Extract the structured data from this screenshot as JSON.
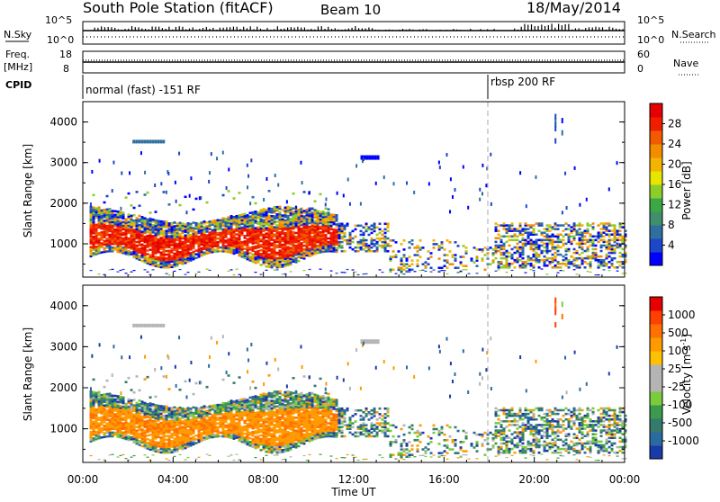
{
  "header": {
    "title": "South Pole Station (fitACF)",
    "beam": "Beam 10",
    "date": "18/May/2014"
  },
  "nsky_panel": {
    "left_label": "N.Sky",
    "right_label": "N.Search",
    "ticks": [
      "10^5",
      "10^0"
    ]
  },
  "freq_panel": {
    "left_label_1": "Freq.",
    "left_label_2": "[MHz]",
    "left_ticks": [
      "18",
      "8"
    ],
    "right_label": "Nave",
    "right_ticks": [
      "60",
      "0"
    ]
  },
  "cpid_panel": {
    "label": "CPID",
    "mode_1": "normal (fast) -151 RF",
    "mode_2": "rbsp 200 RF"
  },
  "chart_data": [
    {
      "type": "heatmap",
      "name": "power",
      "ylabel": "Slant Range [km]",
      "yticks": [
        "1000",
        "2000",
        "3000",
        "4000"
      ],
      "yrange": [
        180,
        4500
      ],
      "xrange_hours": [
        0,
        24
      ],
      "colorbar": {
        "label": "Power [dB]",
        "ticks": [
          "4",
          "8",
          "12",
          "16",
          "20",
          "24",
          "28"
        ],
        "colors": [
          "#0000ff",
          "#1e46c8",
          "#2f6fa0",
          "#3f8f6a",
          "#3aa846",
          "#8ccd2a",
          "#e6e600",
          "#f2b400",
          "#f28c00",
          "#f25a00",
          "#f01e00",
          "#e60000"
        ]
      }
    },
    {
      "type": "heatmap",
      "name": "velocity",
      "ylabel": "Slant Range [km]",
      "yticks": [
        "1000",
        "2000",
        "3000",
        "4000"
      ],
      "yrange": [
        180,
        4500
      ],
      "xrange_hours": [
        0,
        24
      ],
      "xticks": [
        "00:00",
        "04:00",
        "08:00",
        "12:00",
        "16:00",
        "20:00",
        "00:00"
      ],
      "xlabel": "Time UT",
      "colorbar": {
        "label": "Velocity [m s",
        "label_sup": "-1",
        "label_end": "]",
        "ticks": [
          "1000",
          "500",
          "100",
          "25",
          "-25",
          "-100",
          "-500",
          "-1000"
        ],
        "colors": [
          "#1a3aa8",
          "#2a6aa0",
          "#357a6a",
          "#3c9a4a",
          "#7acc3c",
          "#b4b4b4",
          "#b4b4b4",
          "#ffc000",
          "#ff9a00",
          "#ff7000",
          "#ff4000",
          "#e60000"
        ]
      }
    }
  ]
}
